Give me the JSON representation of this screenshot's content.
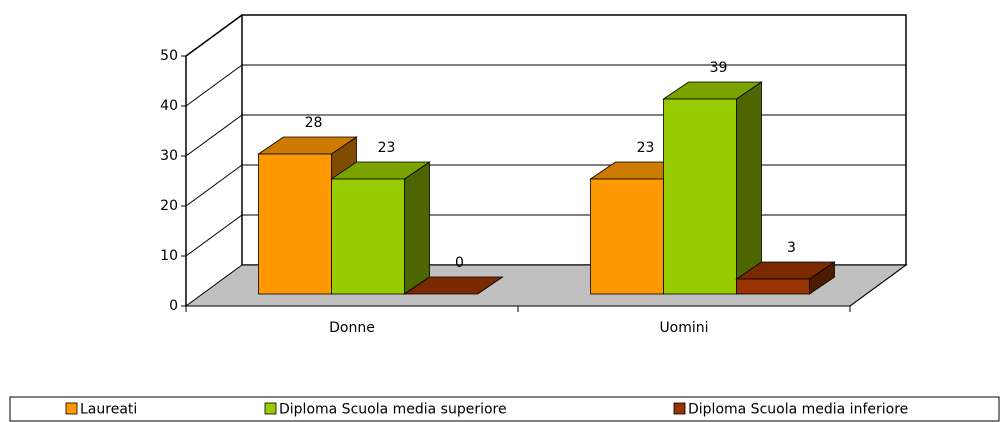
{
  "chart_data": {
    "type": "bar",
    "categories": [
      "Donne",
      "Uomini"
    ],
    "series": [
      {
        "name": "Laureati",
        "color": "#FF9900",
        "values": [
          28,
          23
        ]
      },
      {
        "name": "Diploma Scuola media superiore",
        "color": "#99CC00",
        "values": [
          23,
          39
        ]
      },
      {
        "name": "Diploma Scuola media inferiore",
        "color": "#993300",
        "values": [
          0,
          3
        ]
      }
    ],
    "ylim": [
      0,
      50
    ],
    "yticks": [
      0,
      10,
      20,
      30,
      40,
      50
    ],
    "grid": true,
    "legend": "bottom"
  }
}
